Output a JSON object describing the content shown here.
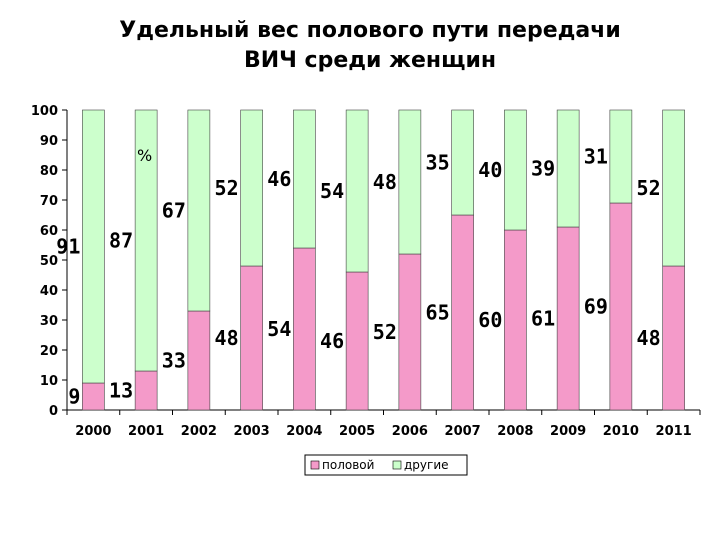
{
  "chart_data": {
    "type": "bar",
    "stacked": true,
    "title_line1": "Удельный вес полового пути передачи",
    "title_line2": "ВИЧ среди женщин",
    "unit_label": "%",
    "categories": [
      "2000",
      "2001",
      "2002",
      "2003",
      "2004",
      "2005",
      "2006",
      "2007",
      "2008",
      "2009",
      "2010",
      "2011"
    ],
    "series": [
      {
        "name": "половой",
        "color": "#f49ac9",
        "values": [
          9,
          13,
          33,
          48,
          54,
          46,
          52,
          65,
          60,
          61,
          69,
          48
        ]
      },
      {
        "name": "другие",
        "color": "#ccffcc",
        "values": [
          91,
          87,
          67,
          52,
          46,
          54,
          48,
          35,
          40,
          39,
          31,
          52
        ]
      }
    ],
    "ylim": [
      0,
      100
    ],
    "yticks": [
      0,
      10,
      20,
      30,
      40,
      50,
      60,
      70,
      80,
      90,
      100
    ],
    "grid": false,
    "legend_position": "bottom"
  }
}
